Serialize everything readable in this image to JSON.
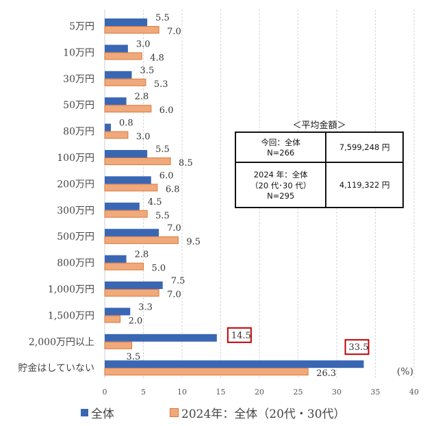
{
  "chart_data": {
    "type": "bar",
    "orientation": "horizontal",
    "categories": [
      "5万円",
      "10万円",
      "30万円",
      "50万円",
      "80万円",
      "100万円",
      "200万円",
      "300万円",
      "500万円",
      "800万円",
      "1,000万円",
      "1,500万円",
      "2,000万円以上",
      "貯金はしていない"
    ],
    "series": [
      {
        "name": "全体",
        "color": "#3A67B4",
        "values": [
          5.5,
          3.0,
          3.5,
          2.8,
          0.8,
          5.5,
          6.0,
          4.5,
          7.0,
          2.8,
          7.5,
          3.3,
          14.5,
          33.5
        ]
      },
      {
        "name": "2024年：全体（20代・30代）",
        "color": "#F0A97B",
        "values": [
          7.0,
          4.8,
          5.3,
          6.0,
          3.0,
          8.5,
          6.8,
          5.5,
          9.5,
          5.0,
          7.0,
          2.0,
          3.5,
          26.3
        ]
      }
    ],
    "value_labels": {
      "series0": [
        "5.5",
        "3.0",
        "3.5",
        "2.8",
        "0.8",
        "5.5",
        "6.0",
        "4.5",
        "7.0",
        "2.8",
        "7.5",
        "3.3",
        "14.5",
        "33.5"
      ],
      "series1": [
        "7.0",
        "4.8",
        "5.3",
        "6.0",
        "3.0",
        "8.5",
        "6.8",
        "5.5",
        "9.5",
        "5.0",
        "7.0",
        "2.0",
        "3.5",
        "26.3"
      ]
    },
    "highlighted_labels": [
      "14.5",
      "33.5"
    ],
    "highlight_color": "#C00000",
    "xlim": [
      0,
      40
    ],
    "xticks": [
      "0",
      "5",
      "10",
      "15",
      "20",
      "25",
      "30",
      "35",
      "40"
    ],
    "unit_label": "(%)",
    "grid": "vertical dashed",
    "legend": "bottom"
  },
  "average_table": {
    "title": "＜平均金額＞",
    "rows": [
      {
        "label_lines": [
          "今回：全体",
          "N=266"
        ],
        "value": "7,599,248 円"
      },
      {
        "label_lines": [
          "2024 年：全体",
          "（20 代･30 代）",
          "N=295"
        ],
        "value": "4,119,322 円"
      }
    ]
  }
}
